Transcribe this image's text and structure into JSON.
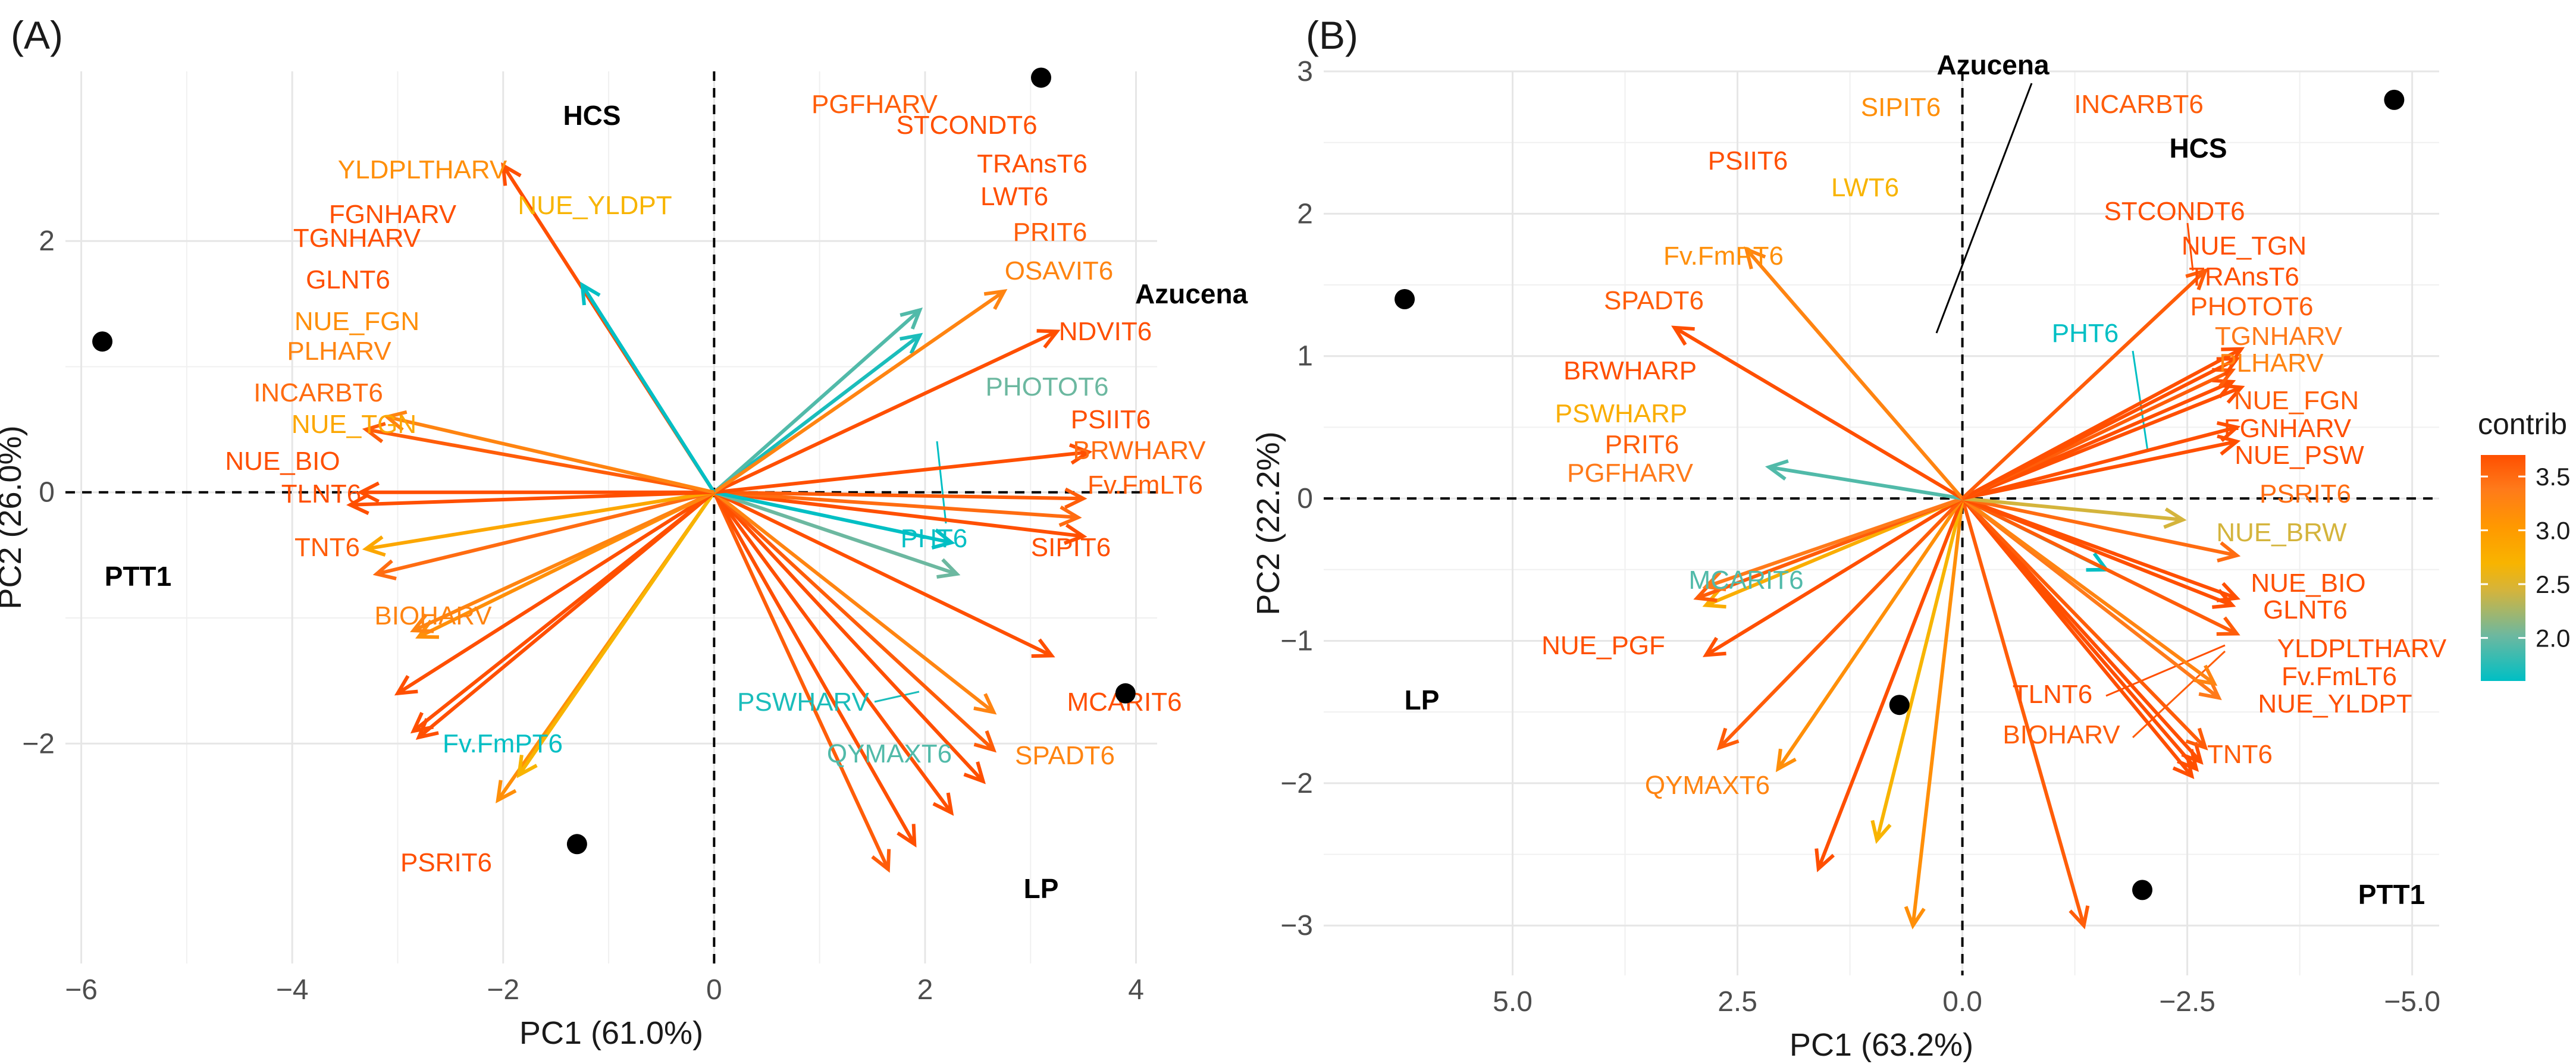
{
  "figure": {
    "panel_a_label": "(A)",
    "panel_b_label": "(B)"
  },
  "legend": {
    "title": "contrib",
    "ticks": [
      "3.5",
      "3.0",
      "2.5",
      "2.0"
    ],
    "tick_values": [
      3.5,
      3.0,
      2.5,
      2.0
    ],
    "range": [
      1.6,
      3.7
    ],
    "colors": [
      "#00BFC4",
      "#6CB8A0",
      "#D4B43C",
      "#F8B400",
      "#FF9900",
      "#FF7A1A",
      "#FF4F00"
    ]
  },
  "chart_data": [
    {
      "type": "scatter",
      "subtype": "pca-biplot",
      "panel": "(A)",
      "xlabel": "PC1 (61.0%)",
      "ylabel": "PC2 (26.0%)",
      "xlim": [
        -6.15,
        4.2
      ],
      "ylim": [
        3.35,
        -3.75
      ],
      "y_reversed": true,
      "xticks": [
        -6,
        -4,
        -2,
        0,
        2,
        4
      ],
      "xtick_labels": [
        "−6",
        "−4",
        "−2",
        "0",
        "2",
        "4"
      ],
      "yticks": [
        -2,
        0,
        2
      ],
      "ytick_labels": [
        "−2",
        "0",
        "2"
      ],
      "samples": [
        {
          "name": "HCS",
          "x": -1.3,
          "y": -2.8
        },
        {
          "name": "Azucena",
          "x": 3.9,
          "y": -1.6
        },
        {
          "name": "PTT1",
          "x": -5.8,
          "y": 1.2
        },
        {
          "name": "LP",
          "x": 3.1,
          "y": 3.3
        }
      ],
      "variables": [
        {
          "name": "PGFHARV",
          "x": 1.65,
          "y": -3.0,
          "contrib": 3.6
        },
        {
          "name": "STCONDT6",
          "x": 1.9,
          "y": -2.8,
          "contrib": 3.7
        },
        {
          "name": "TRAnsT6",
          "x": 2.25,
          "y": -2.55,
          "contrib": 3.7
        },
        {
          "name": "LWT6",
          "x": 2.55,
          "y": -2.3,
          "contrib": 3.7
        },
        {
          "name": "PRIT6",
          "x": 2.65,
          "y": -2.05,
          "contrib": 3.6
        },
        {
          "name": "OSAVIT6",
          "x": 2.65,
          "y": -1.75,
          "contrib": 3.3
        },
        {
          "name": "NDVIT6",
          "x": 3.2,
          "y": -1.3,
          "contrib": 3.7
        },
        {
          "name": "PHOTOT6",
          "x": 2.3,
          "y": -0.65,
          "contrib": 2.0
        },
        {
          "name": "PSIIT6",
          "x": 3.5,
          "y": -0.35,
          "contrib": 3.7
        },
        {
          "name": "BRWHARV",
          "x": 3.45,
          "y": -0.2,
          "contrib": 3.5
        },
        {
          "name": "Fv.FmLT6",
          "x": 3.5,
          "y": -0.05,
          "contrib": 3.6
        },
        {
          "name": "PHT6",
          "x": 2.25,
          "y": -0.4,
          "contrib": 1.6
        },
        {
          "name": "SIPIT6",
          "x": 3.55,
          "y": 0.32,
          "contrib": 3.7
        },
        {
          "name": "MCARIT6",
          "x": 3.25,
          "y": 1.28,
          "contrib": 3.7
        },
        {
          "name": "PSWHARV",
          "x": 1.95,
          "y": 1.25,
          "contrib": 1.7
        },
        {
          "name": "QYMAXT6",
          "x": 1.95,
          "y": 1.45,
          "contrib": 1.9
        },
        {
          "name": "SPADT6",
          "x": 2.75,
          "y": 1.6,
          "contrib": 3.3
        },
        {
          "name": "PSRIT6",
          "x": -2.0,
          "y": 2.6,
          "contrib": 3.7
        },
        {
          "name": "Fv.FmPT6",
          "x": -1.25,
          "y": 1.65,
          "contrib": 1.6
        },
        {
          "name": "YLDPLTHARV",
          "x": -2.05,
          "y": -2.45,
          "contrib": 3.2
        },
        {
          "name": "NUE_YLDPT",
          "x": -1.85,
          "y": -2.25,
          "contrib": 2.7
        },
        {
          "name": "FGNHARV",
          "x": -2.8,
          "y": -1.95,
          "contrib": 3.7
        },
        {
          "name": "TGNHARV",
          "x": -2.85,
          "y": -1.9,
          "contrib": 3.7
        },
        {
          "name": "GLNT6",
          "x": -3.0,
          "y": -1.6,
          "contrib": 3.7
        },
        {
          "name": "NUE_FGN",
          "x": -2.8,
          "y": -1.15,
          "contrib": 3.2
        },
        {
          "name": "PLHARV",
          "x": -2.85,
          "y": -1.1,
          "contrib": 3.3
        },
        {
          "name": "INCARBT6",
          "x": -3.2,
          "y": -0.65,
          "contrib": 3.5
        },
        {
          "name": "NUE_TGN",
          "x": -3.3,
          "y": -0.45,
          "contrib": 2.9
        },
        {
          "name": "NUE_BIO",
          "x": -3.45,
          "y": -0.1,
          "contrib": 3.7
        },
        {
          "name": "TLNT6",
          "x": -3.35,
          "y": 0.0,
          "contrib": 3.7
        },
        {
          "name": "TNT6",
          "x": -3.3,
          "y": 0.5,
          "contrib": 3.6
        },
        {
          "name": "BIOHARV",
          "x": -3.1,
          "y": 0.6,
          "contrib": 3.3
        }
      ]
    },
    {
      "type": "scatter",
      "subtype": "pca-biplot",
      "panel": "(B)",
      "xlabel": "PC1 (63.2%)",
      "ylabel": "PC2 (22.2%)",
      "xlim": [
        7.1,
        -5.3
      ],
      "ylim": [
        3.0,
        -3.35
      ],
      "x_reversed": true,
      "y_reversed": true,
      "xticks": [
        5.0,
        2.5,
        0.0,
        -2.5,
        -5.0
      ],
      "xtick_labels": [
        "5.0",
        "2.5",
        "0.0",
        "−2.5",
        "−5.0"
      ],
      "yticks": [
        -3,
        -2,
        -1,
        0,
        1,
        2,
        3
      ],
      "ytick_labels": [
        "−3",
        "−2",
        "−1",
        "0",
        "1",
        "2",
        "3"
      ],
      "samples": [
        {
          "name": "Azucena",
          "x": 0.7,
          "y": -1.45
        },
        {
          "name": "HCS",
          "x": -2.0,
          "y": -2.75
        },
        {
          "name": "LP",
          "x": 6.2,
          "y": 1.4
        },
        {
          "name": "PTT1",
          "x": -4.8,
          "y": 2.8
        }
      ],
      "variables": [
        {
          "name": "INCARBT6",
          "x": -1.35,
          "y": -3.0,
          "contrib": 3.6
        },
        {
          "name": "SIPIT6",
          "x": 0.55,
          "y": -3.0,
          "contrib": 3.2
        },
        {
          "name": "LWT6",
          "x": 0.95,
          "y": -2.4,
          "contrib": 2.7
        },
        {
          "name": "PSIIT6",
          "x": 1.6,
          "y": -2.6,
          "contrib": 3.7
        },
        {
          "name": "Fv.FmPT6",
          "x": 2.05,
          "y": -1.9,
          "contrib": 3.2
        },
        {
          "name": "SPADT6",
          "x": 2.7,
          "y": -1.75,
          "contrib": 3.6
        },
        {
          "name": "BRWHARP",
          "x": 2.85,
          "y": -1.1,
          "contrib": 3.7
        },
        {
          "name": "PSWHARP",
          "x": 2.85,
          "y": -0.75,
          "contrib": 2.8
        },
        {
          "name": "PRIT6",
          "x": 2.95,
          "y": -0.7,
          "contrib": 3.6
        },
        {
          "name": "PGFHARV",
          "x": 2.85,
          "y": -0.62,
          "contrib": 3.4
        },
        {
          "name": "MCARIT6",
          "x": 2.15,
          "y": 0.22,
          "contrib": 1.9
        },
        {
          "name": "NUE_PGF",
          "x": 3.2,
          "y": 1.2,
          "contrib": 3.7
        },
        {
          "name": "QYMAXT6",
          "x": 2.4,
          "y": 1.75,
          "contrib": 3.3
        },
        {
          "name": "PHT6",
          "x": -1.6,
          "y": -0.5,
          "contrib": 1.6
        },
        {
          "name": "STCONDT6",
          "x": -2.55,
          "y": -1.95,
          "contrib": 3.7
        },
        {
          "name": "NUE_TGN",
          "x": -2.6,
          "y": -1.9,
          "contrib": 3.7
        },
        {
          "name": "TRAnsT6",
          "x": -2.65,
          "y": -1.85,
          "contrib": 3.7
        },
        {
          "name": "PHOTOT6",
          "x": -2.7,
          "y": -1.75,
          "contrib": 3.6
        },
        {
          "name": "TGNHARV",
          "x": -2.85,
          "y": -1.4,
          "contrib": 3.4
        },
        {
          "name": "PLHARV",
          "x": -2.8,
          "y": -1.3,
          "contrib": 3.3
        },
        {
          "name": "NUE_FGN",
          "x": -3.05,
          "y": -0.95,
          "contrib": 3.6
        },
        {
          "name": "FGNHARV",
          "x": -3.0,
          "y": -0.75,
          "contrib": 3.7
        },
        {
          "name": "NUE_PSW",
          "x": -3.05,
          "y": -0.7,
          "contrib": 3.7
        },
        {
          "name": "PSRIT6",
          "x": -3.05,
          "y": -0.4,
          "contrib": 3.5
        },
        {
          "name": "NUE_BRW",
          "x": -2.45,
          "y": -0.15,
          "contrib": 2.4
        },
        {
          "name": "NUE_BIO",
          "x": -3.05,
          "y": 0.4,
          "contrib": 3.7
        },
        {
          "name": "GLNT6",
          "x": -3.05,
          "y": 0.5,
          "contrib": 3.7
        },
        {
          "name": "YLDPLTHARV",
          "x": -3.1,
          "y": 0.78,
          "contrib": 3.7
        },
        {
          "name": "TLNT6",
          "x": -3.0,
          "y": 0.82,
          "contrib": 3.7
        },
        {
          "name": "BIOHARV",
          "x": -3.0,
          "y": 0.9,
          "contrib": 3.6
        },
        {
          "name": "Fv.FmLT6",
          "x": -3.1,
          "y": 1.05,
          "contrib": 3.7
        },
        {
          "name": "NUE_YLDPT",
          "x": -3.05,
          "y": 0.98,
          "contrib": 3.7
        },
        {
          "name": "TNT6",
          "x": -2.7,
          "y": 1.6,
          "contrib": 3.6
        }
      ]
    }
  ]
}
